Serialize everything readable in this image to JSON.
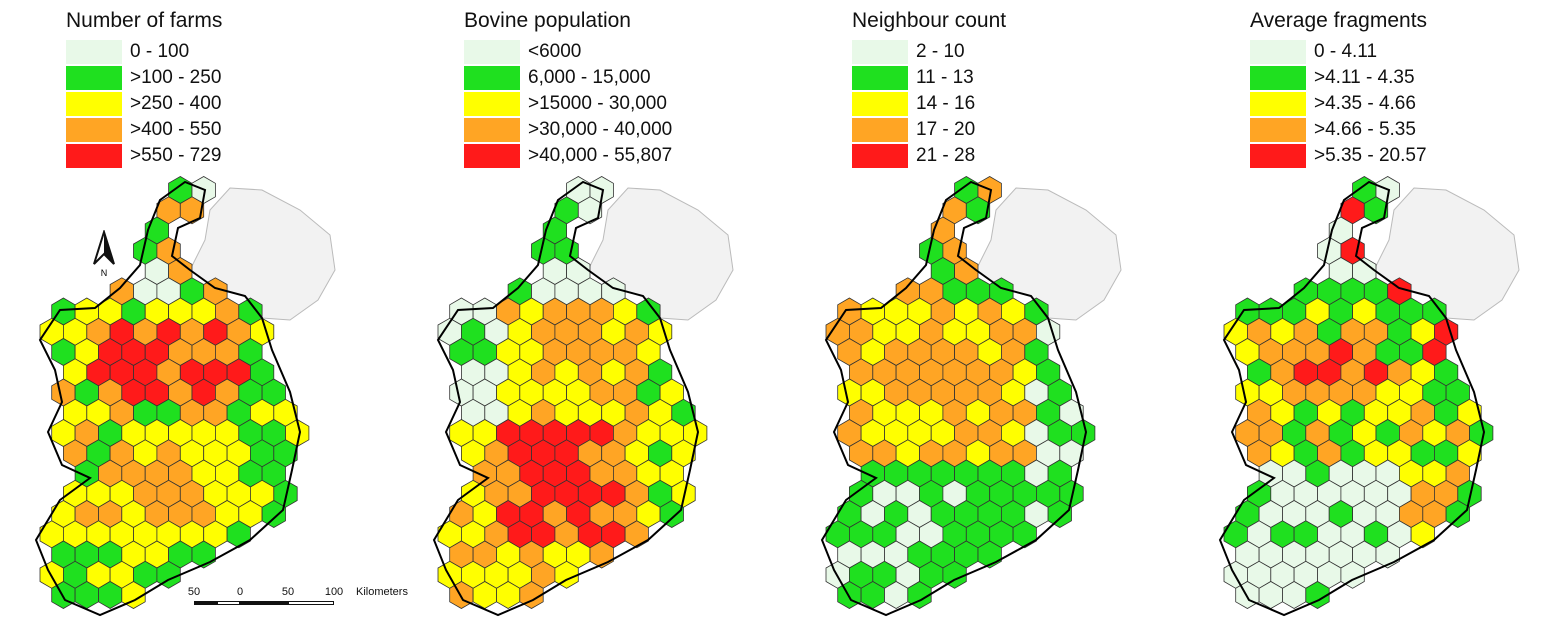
{
  "palette": {
    "c1": "#e8f9e8",
    "c2": "#1fe01f",
    "c3": "#ffff00",
    "c4": "#ffa524",
    "c5": "#ff1a1a",
    "northern_ireland": "#f2f2f2",
    "hex_outline": "#333333"
  },
  "panels": [
    {
      "title": "Number of farms",
      "classes": [
        {
          "label": "0 - 100",
          "color": "c1"
        },
        {
          "label": ">100 - 250",
          "color": "c2"
        },
        {
          "label": ">250 - 400",
          "color": "c3"
        },
        {
          "label": ">400 - 550",
          "color": "c4"
        },
        {
          "label": ">550 - 729",
          "color": "c5"
        }
      ],
      "has_north_arrow": true,
      "has_scale_bar": true
    },
    {
      "title": "Bovine population",
      "classes": [
        {
          "label": "<6000",
          "color": "c1"
        },
        {
          "label": "6,000 - 15,000",
          "color": "c2"
        },
        {
          "label": ">15000 - 30,000",
          "color": "c3"
        },
        {
          "label": ">30,000 - 40,000",
          "color": "c4"
        },
        {
          "label": ">40,000 - 55,807",
          "color": "c5"
        }
      ],
      "has_north_arrow": false,
      "has_scale_bar": false
    },
    {
      "title": "Neighbour count",
      "classes": [
        {
          "label": "2 - 10",
          "color": "c1"
        },
        {
          "label": "11 - 13",
          "color": "c2"
        },
        {
          "label": "14 - 16",
          "color": "c3"
        },
        {
          "label": "17 - 20",
          "color": "c4"
        },
        {
          "label": "21 - 28",
          "color": "c5"
        }
      ],
      "has_north_arrow": false,
      "has_scale_bar": false
    },
    {
      "title": "Average fragments",
      "classes": [
        {
          "label": "0 - 4.11",
          "color": "c1"
        },
        {
          "label": ">4.11 - 4.35",
          "color": "c2"
        },
        {
          "label": ">4.35 - 4.66",
          "color": "c3"
        },
        {
          "label": ">4.66 - 5.35",
          "color": "c4"
        },
        {
          "label": ">5.35 - 20.57",
          "color": "c5"
        }
      ],
      "has_north_arrow": false,
      "has_scale_bar": false
    }
  ],
  "north_arrow": {
    "label": "N"
  },
  "scale_bar": {
    "tick_labels": [
      "50",
      "0",
      "50",
      "100"
    ],
    "unit": "Kilometers"
  }
}
